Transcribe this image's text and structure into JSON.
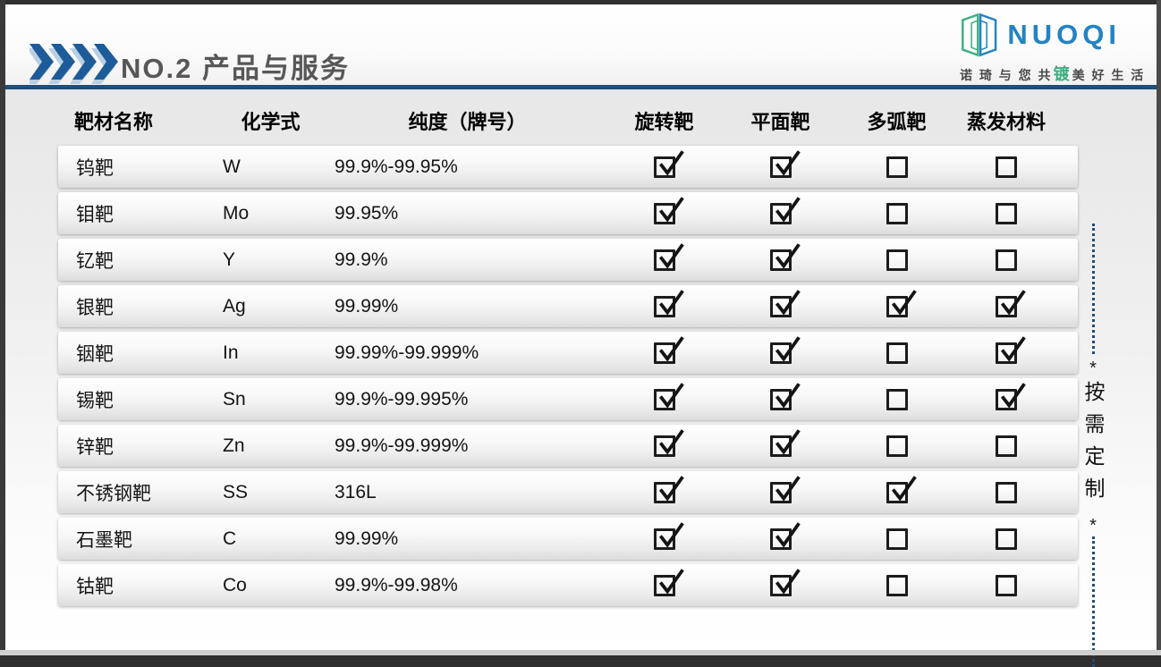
{
  "slide": {
    "header": {
      "title": "NO.2  产品与服务",
      "logo": {
        "name": "NUOQI",
        "tagline_left": "诺 琦  与 您 共",
        "tagline_accent": "镀",
        "tagline_right": "美 好 生 活"
      }
    },
    "table": {
      "columns": [
        "靶材名称",
        "化学式",
        "纯度（牌号）",
        "旋转靶",
        "平面靶",
        "多弧靶",
        "蒸发材料"
      ],
      "rows": [
        {
          "name": "钨靶",
          "formula": "W",
          "purity": "99.9%-99.95%",
          "rotary": true,
          "planar": true,
          "multi_arc": false,
          "evaporation": false
        },
        {
          "name": "钼靶",
          "formula": "Mo",
          "purity": "99.95%",
          "rotary": true,
          "planar": true,
          "multi_arc": false,
          "evaporation": false
        },
        {
          "name": "钇靶",
          "formula": "Y",
          "purity": "99.9%",
          "rotary": true,
          "planar": true,
          "multi_arc": false,
          "evaporation": false
        },
        {
          "name": "银靶",
          "formula": "Ag",
          "purity": "99.99%",
          "rotary": true,
          "planar": true,
          "multi_arc": true,
          "evaporation": true
        },
        {
          "name": "铟靶",
          "formula": "In",
          "purity": "99.99%-99.999%",
          "rotary": true,
          "planar": true,
          "multi_arc": false,
          "evaporation": true
        },
        {
          "name": "锡靶",
          "formula": "Sn",
          "purity": "99.9%-99.995%",
          "rotary": true,
          "planar": true,
          "multi_arc": false,
          "evaporation": true
        },
        {
          "name": "锌靶",
          "formula": "Zn",
          "purity": " 99.9%-99.999%",
          "rotary": true,
          "planar": true,
          "multi_arc": false,
          "evaporation": false
        },
        {
          "name": "不锈钢靶",
          "formula": "SS",
          "purity": "316L",
          "rotary": true,
          "planar": true,
          "multi_arc": true,
          "evaporation": false
        },
        {
          "name": "石墨靶",
          "formula": "C",
          "purity": "99.99%",
          "rotary": true,
          "planar": true,
          "multi_arc": false,
          "evaporation": false
        },
        {
          "name": "钴靶",
          "formula": "Co",
          "purity": "99.9%-99.98%",
          "rotary": true,
          "planar": true,
          "multi_arc": false,
          "evaporation": false
        }
      ]
    },
    "side_note": {
      "asterisk_top": "*",
      "text": "按需定制",
      "asterisk_bottom": "*"
    },
    "colors": {
      "accent_blue": "#1f4e79",
      "title_gray": "#575757",
      "logo_blue": "#2383c4",
      "logo_green": "#3fae7e"
    }
  }
}
